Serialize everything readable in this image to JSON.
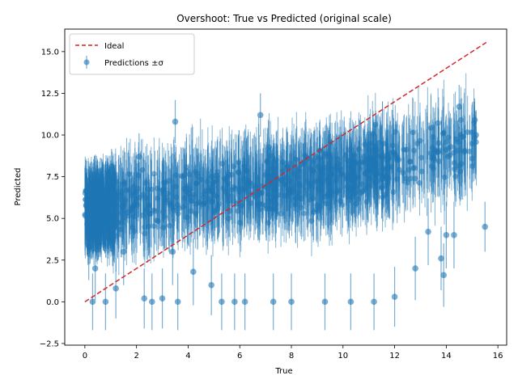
{
  "chart_data": {
    "type": "scatter",
    "title": "Overshoot: True vs Predicted (original scale)",
    "xlabel": "True",
    "ylabel": "Predicted",
    "xlim": [
      -0.78,
      16.34
    ],
    "ylim": [
      -2.6,
      16.35
    ],
    "xticks": [
      0,
      2,
      4,
      6,
      8,
      10,
      12,
      14,
      16
    ],
    "xtick_labels": [
      "0",
      "2",
      "4",
      "6",
      "8",
      "10",
      "12",
      "14",
      "16"
    ],
    "yticks": [
      -2.5,
      0.0,
      2.5,
      5.0,
      7.5,
      10.0,
      12.5,
      15.0
    ],
    "ytick_labels": [
      "−2.5",
      "0.0",
      "2.5",
      "5.0",
      "7.5",
      "10.0",
      "12.5",
      "15.0"
    ],
    "grid": false,
    "legend_position": "top-left",
    "colors": {
      "points": "#1f77b4",
      "ideal": "#d62728"
    },
    "series": [
      {
        "name": "Ideal",
        "kind": "line",
        "style": "dashed",
        "x": [
          0,
          15.55
        ],
        "y": [
          0,
          15.55
        ]
      },
      {
        "name": "Predictions ±σ",
        "kind": "errorbar",
        "sample_points": [
          {
            "x": 0.05,
            "y": 5.8,
            "err": 1.8
          },
          {
            "x": 0.1,
            "y": 4.6,
            "err": 1.9
          },
          {
            "x": 0.15,
            "y": 3.3,
            "err": 2.0
          },
          {
            "x": 0.2,
            "y": 6.4,
            "err": 1.9
          },
          {
            "x": 0.3,
            "y": 0.0,
            "err": 1.7
          },
          {
            "x": 0.4,
            "y": 2.0,
            "err": 1.9
          },
          {
            "x": 0.6,
            "y": 5.0,
            "err": 2.0
          },
          {
            "x": 0.8,
            "y": 0.0,
            "err": 1.7
          },
          {
            "x": 1.0,
            "y": 6.2,
            "err": 1.9
          },
          {
            "x": 1.2,
            "y": 0.8,
            "err": 1.8
          },
          {
            "x": 1.5,
            "y": 3.0,
            "err": 2.0
          },
          {
            "x": 1.8,
            "y": 5.5,
            "err": 1.9
          },
          {
            "x": 2.1,
            "y": 8.7,
            "err": 1.4
          },
          {
            "x": 2.3,
            "y": 0.2,
            "err": 1.8
          },
          {
            "x": 2.6,
            "y": 0.0,
            "err": 1.7
          },
          {
            "x": 3.0,
            "y": 0.2,
            "err": 1.8
          },
          {
            "x": 3.4,
            "y": 3.0,
            "err": 2.0
          },
          {
            "x": 3.6,
            "y": 0.0,
            "err": 1.7
          },
          {
            "x": 3.5,
            "y": 10.8,
            "err": 1.3
          },
          {
            "x": 4.2,
            "y": 1.8,
            "err": 2.0
          },
          {
            "x": 4.9,
            "y": 1.0,
            "err": 1.8
          },
          {
            "x": 5.3,
            "y": 0.0,
            "err": 1.7
          },
          {
            "x": 5.8,
            "y": 0.0,
            "err": 1.7
          },
          {
            "x": 6.2,
            "y": 0.0,
            "err": 1.7
          },
          {
            "x": 6.8,
            "y": 11.2,
            "err": 1.3
          },
          {
            "x": 7.3,
            "y": 0.0,
            "err": 1.7
          },
          {
            "x": 8.0,
            "y": 0.0,
            "err": 1.7
          },
          {
            "x": 9.3,
            "y": 0.0,
            "err": 1.7
          },
          {
            "x": 10.3,
            "y": 0.0,
            "err": 1.7
          },
          {
            "x": 11.2,
            "y": 0.0,
            "err": 1.7
          },
          {
            "x": 12.0,
            "y": 0.3,
            "err": 1.8
          },
          {
            "x": 12.8,
            "y": 2.0,
            "err": 1.9
          },
          {
            "x": 13.3,
            "y": 4.2,
            "err": 2.0
          },
          {
            "x": 13.8,
            "y": 2.6,
            "err": 1.9
          },
          {
            "x": 13.9,
            "y": 1.6,
            "err": 1.9
          },
          {
            "x": 14.0,
            "y": 4.0,
            "err": 2.0
          },
          {
            "x": 14.3,
            "y": 4.0,
            "err": 2.0
          },
          {
            "x": 14.5,
            "y": 11.7,
            "err": 1.3
          },
          {
            "x": 14.7,
            "y": 9.0,
            "err": 1.5
          },
          {
            "x": 15.1,
            "y": 10.9,
            "err": 1.3
          },
          {
            "x": 15.15,
            "y": 10.0,
            "err": 1.4
          },
          {
            "x": 15.5,
            "y": 4.5,
            "err": 1.5
          }
        ]
      }
    ]
  }
}
